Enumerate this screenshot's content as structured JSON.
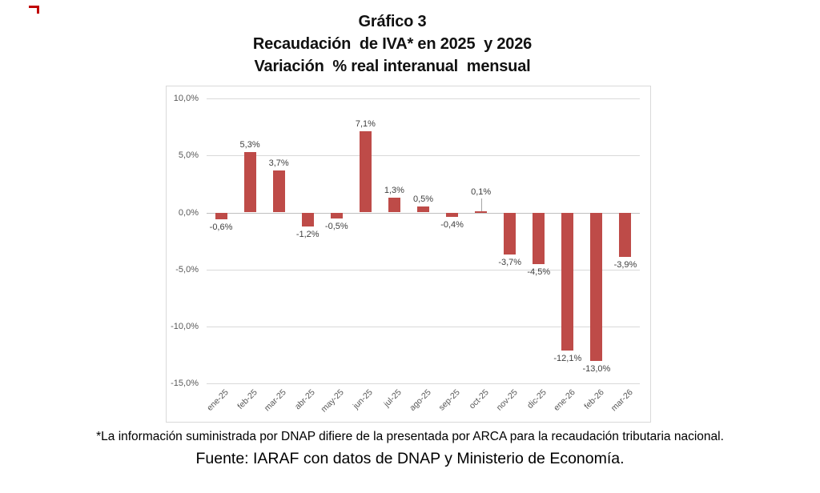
{
  "title": {
    "line1": "Gráfico 3",
    "line2": "Recaudación  de IVA* en 2025  y 2026",
    "line3": "Variación  % real interanual  mensual"
  },
  "chart_data": {
    "type": "bar",
    "title": "Gráfico 3 - Recaudación de IVA* en 2025 y 2026 - Variación % real interanual mensual",
    "categories": [
      "ene-25",
      "feb-25",
      "mar-25",
      "abr-25",
      "may-25",
      "jun-25",
      "jul-25",
      "ago-25",
      "sep-25",
      "oct-25",
      "nov-25",
      "dic-25",
      "ene-26",
      "feb-26",
      "mar-26"
    ],
    "values": [
      -0.6,
      5.3,
      3.7,
      -1.2,
      -0.5,
      7.1,
      1.3,
      0.5,
      -0.4,
      0.1,
      -3.7,
      -4.5,
      -12.1,
      -13.0,
      -3.9
    ],
    "value_labels": [
      "-0,6%",
      "5,3%",
      "3,7%",
      "-1,2%",
      "-0,5%",
      "7,1%",
      "1,3%",
      "0,5%",
      "-0,4%",
      "0,1%",
      "-3,7%",
      "-4,5%",
      "-12,1%",
      "-13,0%",
      "-3,9%"
    ],
    "y_axis": {
      "ticks": [
        {
          "label": "10,0%",
          "value": 10
        },
        {
          "label": "5,0%",
          "value": 5
        },
        {
          "label": "0,0%",
          "value": 0
        },
        {
          "label": "-5,0%",
          "value": -5
        },
        {
          "label": "-10,0%",
          "value": -10
        },
        {
          "label": "-15,0%",
          "value": -15
        }
      ],
      "range": [
        -15,
        10
      ]
    },
    "xlabel": "",
    "ylabel": "",
    "grid": true,
    "legend": false,
    "callout_label_index": 9,
    "bar_color": "#be4b48",
    "gridline_color": "#d9d9d9",
    "zero_line_color": "#bfbfbf",
    "axis_text_color": "#595959",
    "data_label_color": "#3f3f3f"
  },
  "footnote": "*La información suministrada por DNAP difiere de la presentada por ARCA para la recaudación tributaria nacional.",
  "source": "Fuente: IARAF con datos de DNAP y Ministerio de Economía."
}
